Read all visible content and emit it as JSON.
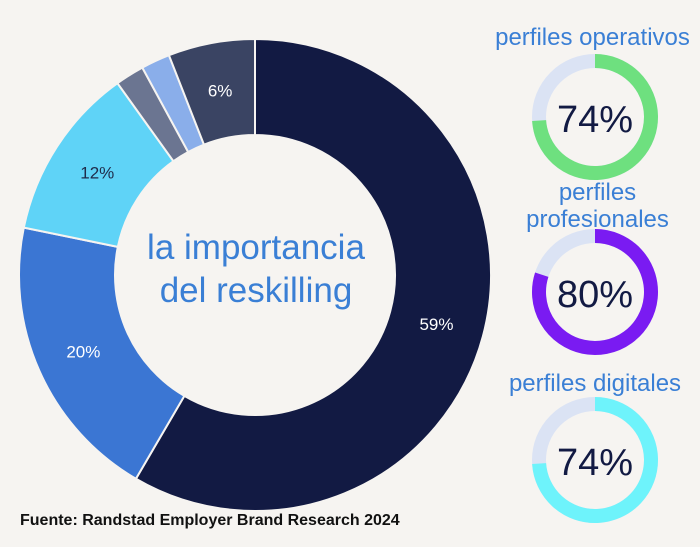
{
  "chart_data": [
    {
      "type": "pie",
      "variant": "donut",
      "center_label": [
        "la importancia",
        "del reskilling"
      ],
      "slices": [
        {
          "value": 59,
          "label": "59%",
          "color": "#121a43",
          "label_color": "#ffffff"
        },
        {
          "value": 20,
          "label": "20%",
          "color": "#3b76d3",
          "label_color": "#ffffff"
        },
        {
          "value": 12,
          "label": "12%",
          "color": "#5fd3f7",
          "label_color": "#1f2b4a"
        },
        {
          "value": 2,
          "label": "",
          "color": "#6b7591",
          "label_color": "#ffffff"
        },
        {
          "value": 2,
          "label": "",
          "color": "#8aaeea",
          "label_color": "#ffffff"
        },
        {
          "value": 6,
          "label": "6%",
          "color": "#3a4463",
          "label_color": "#ffffff"
        }
      ]
    },
    {
      "type": "pie",
      "variant": "donut",
      "title": "perfiles operativos",
      "value": 74,
      "label": "74%",
      "color": "#6ee07f",
      "track_color": "#dbe3f4"
    },
    {
      "type": "pie",
      "variant": "donut",
      "title": "perfiles profesionales",
      "title_lines": [
        "perfiles",
        "profesionales"
      ],
      "value": 80,
      "label": "80%",
      "color": "#7a1bf2",
      "track_color": "#dbe3f4"
    },
    {
      "type": "pie",
      "variant": "donut",
      "title": "perfiles digitales",
      "value": 74,
      "label": "74%",
      "color": "#6ef3fb",
      "track_color": "#dbe3f4"
    }
  ],
  "source": "Fuente: Randstad Employer Brand Research 2024"
}
